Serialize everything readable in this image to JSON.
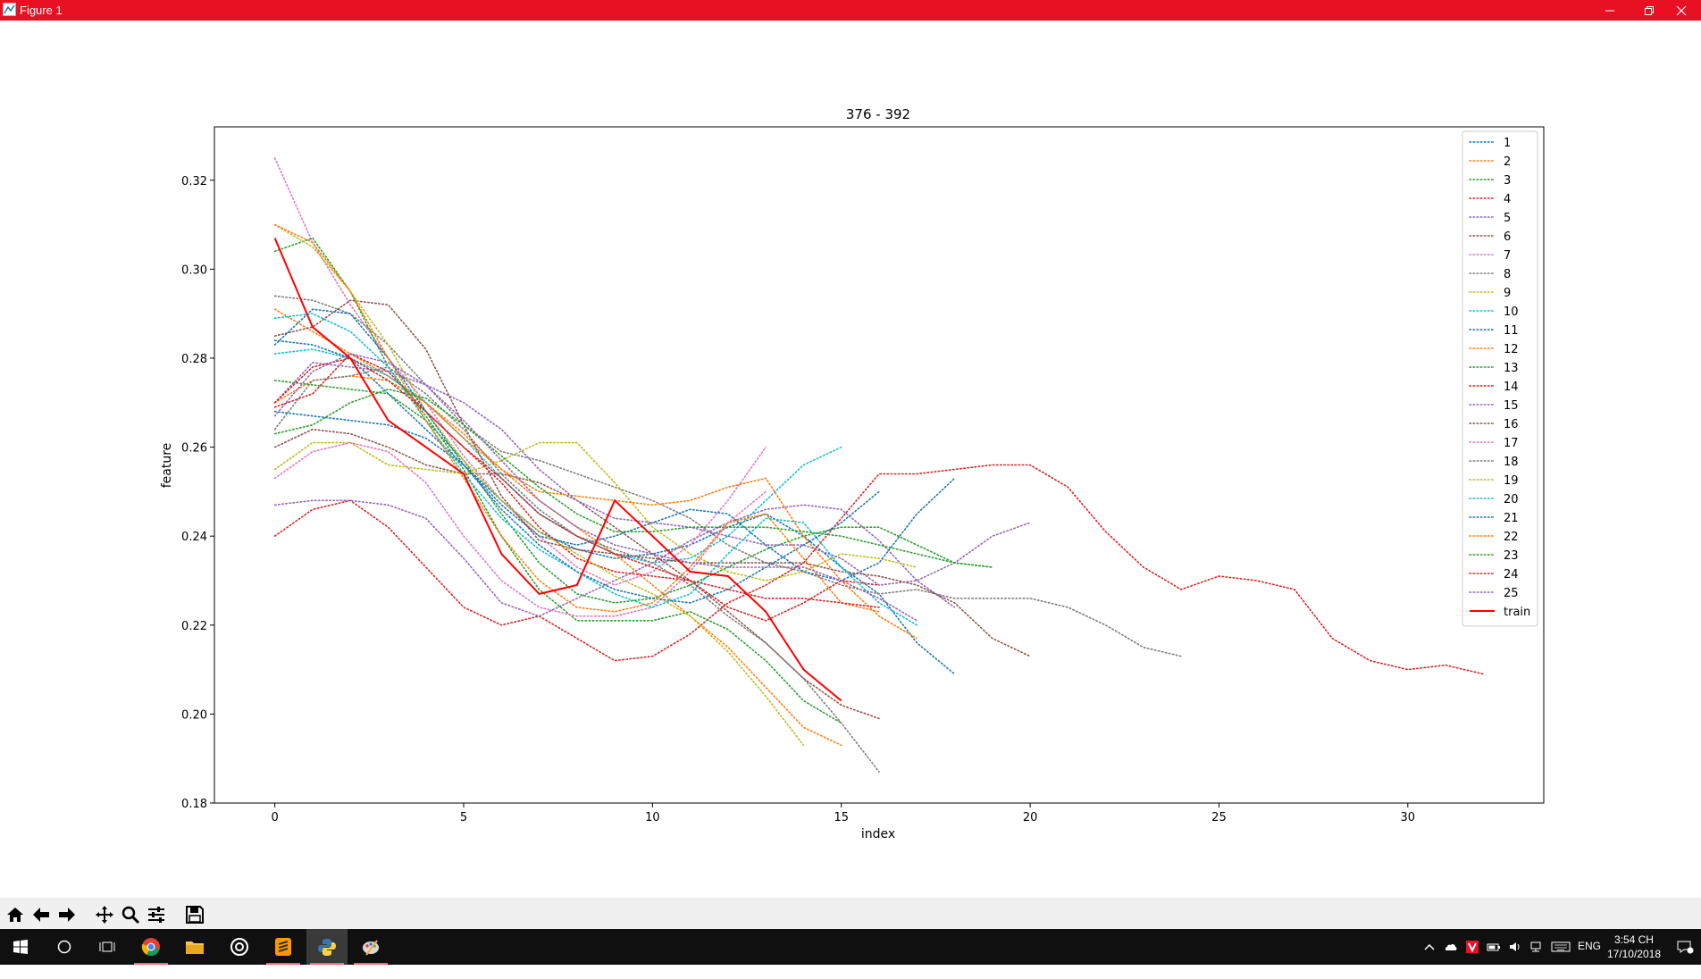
{
  "window": {
    "title": "Figure 1"
  },
  "taskbar": {
    "time": "3:54 CH",
    "date": "17/10/2018",
    "language": "ENG"
  },
  "toolbar": {
    "buttons": [
      "home-icon",
      "back-arrow-icon",
      "forward-arrow-icon",
      "pan-icon",
      "zoom-icon",
      "configure-subplots-icon",
      "save-icon"
    ]
  },
  "colors": {
    "titlebar": "#e81123",
    "taskbar": "#101010",
    "train": "#ff0000"
  },
  "chart_data": {
    "type": "line",
    "title": "376 - 392",
    "xlabel": "index",
    "ylabel": "feature",
    "xlim": [
      -1.6,
      33.6
    ],
    "ylim": [
      0.18,
      0.332
    ],
    "xticks": [
      0,
      5,
      10,
      15,
      20,
      25,
      30
    ],
    "yticks": [
      0.18,
      0.2,
      0.22,
      0.24,
      0.26,
      0.28,
      0.3,
      0.32
    ],
    "ytick_labels": [
      "0.18",
      "0.20",
      "0.22",
      "0.24",
      "0.26",
      "0.28",
      "0.30",
      "0.32"
    ],
    "legend_position": "upper right",
    "series": [
      {
        "name": "1",
        "color": "#1f77b4",
        "style": "dotted",
        "values": [
          0.268,
          0.267,
          0.266,
          0.265,
          0.262,
          0.256,
          0.248,
          0.241,
          0.237,
          0.235,
          0.236,
          0.238,
          0.242,
          0.245,
          0.24,
          0.233,
          0.227,
          0.216,
          0.209
        ]
      },
      {
        "name": "2",
        "color": "#ff7f0e",
        "style": "dotted",
        "values": [
          0.291,
          0.286,
          0.281,
          0.276,
          0.27,
          0.263,
          0.255,
          0.248,
          0.242,
          0.236,
          0.229,
          0.222,
          0.215,
          0.206,
          0.197,
          0.193
        ]
      },
      {
        "name": "3",
        "color": "#2ca02c",
        "style": "dotted",
        "values": [
          0.275,
          0.274,
          0.273,
          0.272,
          0.266,
          0.257,
          0.245,
          0.234,
          0.227,
          0.225,
          0.226,
          0.229,
          0.233,
          0.237,
          0.24,
          0.242,
          0.242,
          0.238,
          0.234,
          0.233
        ]
      },
      {
        "name": "4",
        "color": "#d62728",
        "style": "dotted",
        "values": [
          0.24,
          0.246,
          0.248,
          0.242,
          0.233,
          0.224,
          0.22,
          0.222,
          0.217,
          0.212,
          0.213,
          0.218,
          0.225,
          0.229,
          0.234,
          0.244,
          0.254,
          0.254,
          0.255,
          0.256,
          0.256,
          0.251,
          0.241,
          0.233,
          0.228,
          0.231,
          0.23,
          0.228,
          0.217,
          0.212,
          0.21,
          0.211,
          0.209
        ]
      },
      {
        "name": "5",
        "color": "#9467bd",
        "style": "dotted",
        "values": [
          0.247,
          0.248,
          0.248,
          0.247,
          0.244,
          0.235,
          0.225,
          0.222,
          0.226,
          0.23,
          0.234,
          0.239,
          0.243,
          0.246,
          0.247,
          0.246,
          0.239,
          0.23,
          0.224
        ]
      },
      {
        "name": "6",
        "color": "#8c564b",
        "style": "dotted",
        "values": [
          0.26,
          0.264,
          0.263,
          0.26,
          0.256,
          0.254,
          0.254,
          0.252,
          0.248,
          0.242,
          0.236,
          0.23,
          0.223,
          0.216,
          0.208,
          0.202,
          0.199
        ]
      },
      {
        "name": "7",
        "color": "#e377c2",
        "style": "dotted",
        "values": [
          0.325,
          0.306,
          0.292,
          0.28,
          0.27,
          0.258,
          0.248,
          0.24,
          0.233,
          0.229,
          0.232,
          0.238,
          0.248,
          0.26
        ]
      },
      {
        "name": "8",
        "color": "#7f7f7f",
        "style": "dotted",
        "values": [
          0.294,
          0.293,
          0.29,
          0.283,
          0.274,
          0.265,
          0.259,
          0.257,
          0.254,
          0.251,
          0.248,
          0.244,
          0.238,
          0.234,
          0.232,
          0.229,
          0.227,
          0.228,
          0.226,
          0.226,
          0.226,
          0.224,
          0.22,
          0.215,
          0.213
        ]
      },
      {
        "name": "9",
        "color": "#bcbd22",
        "style": "dotted",
        "values": [
          0.255,
          0.261,
          0.261,
          0.256,
          0.255,
          0.254,
          0.257,
          0.261,
          0.261,
          0.252,
          0.242,
          0.236,
          0.232,
          0.23,
          0.232,
          0.236,
          0.235,
          0.233
        ]
      },
      {
        "name": "10",
        "color": "#17becf",
        "style": "dotted",
        "values": [
          0.281,
          0.282,
          0.28,
          0.276,
          0.27,
          0.262,
          0.253,
          0.245,
          0.24,
          0.236,
          0.234,
          0.235,
          0.24,
          0.248,
          0.256,
          0.26
        ]
      },
      {
        "name": "11",
        "color": "#1f77b4",
        "style": "dotted",
        "values": [
          0.284,
          0.283,
          0.28,
          0.272,
          0.264,
          0.256,
          0.247,
          0.24,
          0.238,
          0.24,
          0.243,
          0.246,
          0.245,
          0.238,
          0.232,
          0.23,
          0.234,
          0.245,
          0.253
        ]
      },
      {
        "name": "12",
        "color": "#ff7f0e",
        "style": "dotted",
        "values": [
          0.27,
          0.275,
          0.276,
          0.275,
          0.27,
          0.262,
          0.255,
          0.25,
          0.249,
          0.248,
          0.247,
          0.248,
          0.251,
          0.253,
          0.24,
          0.23,
          0.222,
          0.217
        ]
      },
      {
        "name": "13",
        "color": "#2ca02c",
        "style": "dotted",
        "values": [
          0.304,
          0.307,
          0.295,
          0.278,
          0.267,
          0.255,
          0.24,
          0.228,
          0.221,
          0.221,
          0.221,
          0.223,
          0.219,
          0.212,
          0.203,
          0.198
        ]
      },
      {
        "name": "14",
        "color": "#d62728",
        "style": "dotted",
        "values": [
          0.269,
          0.272,
          0.281,
          0.277,
          0.268,
          0.26,
          0.252,
          0.242,
          0.235,
          0.232,
          0.231,
          0.23,
          0.224,
          0.221,
          0.225,
          0.23,
          0.229
        ]
      },
      {
        "name": "15",
        "color": "#9467bd",
        "style": "dotted",
        "values": [
          0.27,
          0.279,
          0.278,
          0.277,
          0.274,
          0.27,
          0.264,
          0.255,
          0.248,
          0.244,
          0.243,
          0.242,
          0.24,
          0.238,
          0.238,
          0.235,
          0.229,
          0.23,
          0.234,
          0.24,
          0.243
        ]
      },
      {
        "name": "16",
        "color": "#8c564b",
        "style": "dotted",
        "values": [
          0.285,
          0.287,
          0.293,
          0.292,
          0.282,
          0.265,
          0.249,
          0.239,
          0.237,
          0.236,
          0.235,
          0.234,
          0.234,
          0.234,
          0.234,
          0.232,
          0.231,
          0.229,
          0.225,
          0.217,
          0.213
        ]
      },
      {
        "name": "17",
        "color": "#e377c2",
        "style": "dotted",
        "values": [
          0.253,
          0.259,
          0.261,
          0.259,
          0.252,
          0.24,
          0.23,
          0.224,
          0.222,
          0.222,
          0.224,
          0.232,
          0.243,
          0.25
        ]
      },
      {
        "name": "18",
        "color": "#7f7f7f",
        "style": "dotted",
        "values": [
          0.264,
          0.275,
          0.276,
          0.278,
          0.272,
          0.264,
          0.254,
          0.246,
          0.24,
          0.237,
          0.234,
          0.229,
          0.222,
          0.216,
          0.208,
          0.198,
          0.187
        ]
      },
      {
        "name": "19",
        "color": "#bcbd22",
        "style": "dotted",
        "values": [
          0.31,
          0.305,
          0.295,
          0.283,
          0.268,
          0.257,
          0.248,
          0.241,
          0.236,
          0.231,
          0.227,
          0.222,
          0.214,
          0.204,
          0.193
        ]
      },
      {
        "name": "20",
        "color": "#17becf",
        "style": "dotted",
        "values": [
          0.289,
          0.29,
          0.286,
          0.278,
          0.266,
          0.254,
          0.244,
          0.237,
          0.232,
          0.227,
          0.224,
          0.227,
          0.236,
          0.244,
          0.243,
          0.233,
          0.225,
          0.22
        ]
      },
      {
        "name": "21",
        "color": "#1f77b4",
        "style": "dotted",
        "values": [
          0.283,
          0.291,
          0.29,
          0.28,
          0.268,
          0.256,
          0.246,
          0.238,
          0.232,
          0.228,
          0.226,
          0.225,
          0.228,
          0.233,
          0.238,
          0.243,
          0.25
        ]
      },
      {
        "name": "22",
        "color": "#ff7f0e",
        "style": "dotted",
        "values": [
          0.31,
          0.306,
          0.295,
          0.28,
          0.266,
          0.253,
          0.24,
          0.23,
          0.224,
          0.223,
          0.225,
          0.233,
          0.243,
          0.245,
          0.235,
          0.225,
          0.223
        ]
      },
      {
        "name": "23",
        "color": "#2ca02c",
        "style": "dotted",
        "values": [
          0.263,
          0.265,
          0.27,
          0.273,
          0.271,
          0.265,
          0.258,
          0.251,
          0.245,
          0.241,
          0.241,
          0.242,
          0.242,
          0.242,
          0.241,
          0.24,
          0.238,
          0.236,
          0.234,
          0.233
        ]
      },
      {
        "name": "24",
        "color": "#d62728",
        "style": "dotted",
        "values": [
          0.27,
          0.278,
          0.28,
          0.275,
          0.268,
          0.26,
          0.253,
          0.245,
          0.24,
          0.236,
          0.233,
          0.23,
          0.228,
          0.226,
          0.226,
          0.225,
          0.224
        ]
      },
      {
        "name": "25",
        "color": "#9467bd",
        "style": "dotted",
        "values": [
          0.267,
          0.277,
          0.281,
          0.279,
          0.274,
          0.266,
          0.257,
          0.248,
          0.242,
          0.238,
          0.236,
          0.234,
          0.233,
          0.233,
          0.233,
          0.23,
          0.226,
          0.221
        ]
      },
      {
        "name": "train",
        "color": "#ff0000",
        "style": "solid",
        "values": [
          0.307,
          0.287,
          0.28,
          0.266,
          0.26,
          0.254,
          0.236,
          0.227,
          0.229,
          0.248,
          0.24,
          0.232,
          0.231,
          0.223,
          0.21,
          0.203
        ]
      }
    ]
  }
}
